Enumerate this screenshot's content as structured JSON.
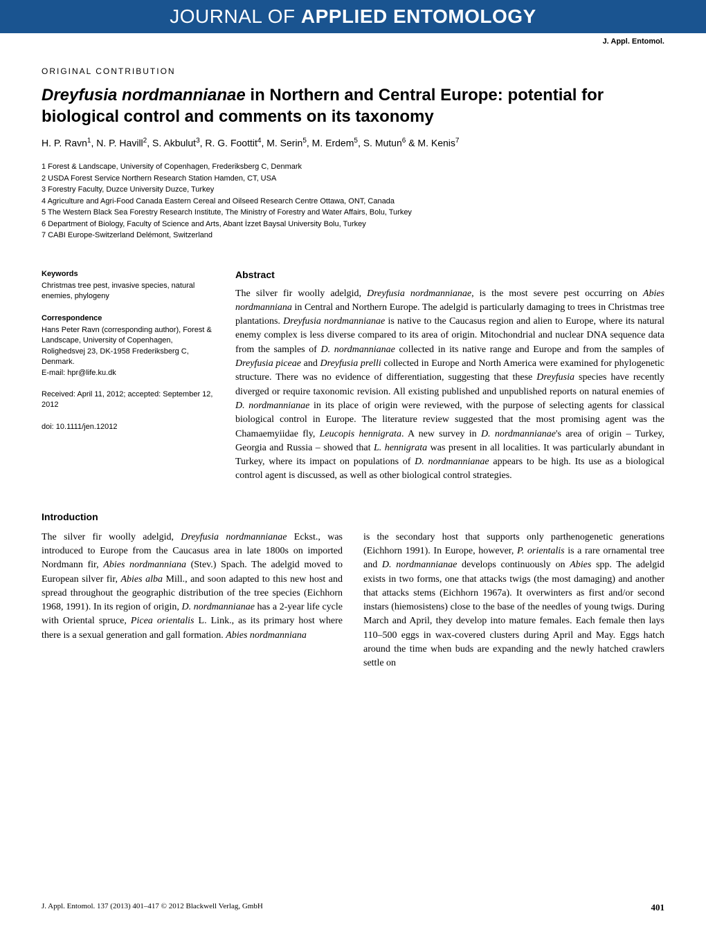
{
  "journal": {
    "banner_prefix": "JOURNAL OF ",
    "banner_bold": "APPLIED ENTOMOLOGY",
    "short_name": "J. Appl. Entomol."
  },
  "article": {
    "contribution_type": "ORIGINAL CONTRIBUTION",
    "title_italic": "Dreyfusia nordmannianae",
    "title_rest": " in Northern and Central Europe: potential for biological control and comments on its taxonomy",
    "authors_html": "H. P. Ravn<sup>1</sup>, N. P. Havill<sup>2</sup>, S. Akbulut<sup>3</sup>, R. G. Foottit<sup>4</sup>, M. Serin<sup>5</sup>, M. Erdem<sup>5</sup>, S. Mutun<sup>6</sup> & M. Kenis<sup>7</sup>",
    "affiliations": [
      "1 Forest & Landscape, University of Copenhagen, Frederiksberg C, Denmark",
      "2 USDA Forest Service Northern Research Station Hamden, CT, USA",
      "3 Forestry Faculty, Duzce University Duzce, Turkey",
      "4 Agriculture and Agri-Food Canada Eastern Cereal and Oilseed Research Centre Ottawa, ONT, Canada",
      "5 The Western Black Sea Forestry Research Institute, The Ministry of Forestry and Water Affairs, Bolu, Turkey",
      "6 Department of Biology, Faculty of Science and Arts, Abant İzzet Baysal University Bolu, Turkey",
      "7 CABI Europe-Switzerland Delémont, Switzerland"
    ]
  },
  "sidebar": {
    "keywords_heading": "Keywords",
    "keywords_text": "Christmas tree pest, invasive species, natural enemies, phylogeny",
    "correspondence_heading": "Correspondence",
    "correspondence_text": "Hans Peter Ravn (corresponding author), Forest & Landscape, University of Copenhagen, Rolighedsvej 23, DK-1958 Frederiksberg C, Denmark.",
    "email_label": "E-mail: hpr@life.ku.dk",
    "received_text": "Received: April 11, 2012; accepted: September 12, 2012",
    "doi_text": "doi: 10.1111/jen.12012"
  },
  "abstract": {
    "heading": "Abstract",
    "text_html": "The silver fir woolly adelgid, <span class=\"italic\">Dreyfusia nordmannianae</span>, is the most severe pest occurring on <span class=\"italic\">Abies nordmanniana</span> in Central and Northern Europe. The adelgid is particularly damaging to trees in Christmas tree plantations. <span class=\"italic\">Dreyfusia nordmannianae</span> is native to the Caucasus region and alien to Europe, where its natural enemy complex is less diverse compared to its area of origin. Mitochondrial and nuclear DNA sequence data from the samples of <span class=\"italic\">D. nordmannianae</span> collected in its native range and Europe and from the samples of <span class=\"italic\">Dreyfusia piceae</span> and <span class=\"italic\">Dreyfusia prelli</span> collected in Europe and North America were examined for phylogenetic structure. There was no evidence of differentiation, suggesting that these <span class=\"italic\">Dreyfusia</span> species have recently diverged or require taxonomic revision. All existing published and unpublished reports on natural enemies of <span class=\"italic\">D. nordmannianae</span> in its place of origin were reviewed, with the purpose of selecting agents for classical biological control in Europe. The literature review suggested that the most promising agent was the Chamaemyiidae fly, <span class=\"italic\">Leucopis hennigrata</span>. A new survey in <span class=\"italic\">D. nordmannianae</span>'s area of origin – Turkey, Georgia and Russia – showed that <span class=\"italic\">L. hennigrata</span> was present in all localities. It was particularly abundant in Turkey, where its impact on populations of <span class=\"italic\">D. nordmannianae</span> appears to be high. Its use as a biological control agent is discussed, as well as other biological control strategies."
  },
  "introduction": {
    "heading": "Introduction",
    "col1_html": "The silver fir woolly adelgid, <span class=\"italic\">Dreyfusia nordmannianae</span> Eckst., was introduced to Europe from the Caucasus area in late 1800s on imported Nordmann fir, <span class=\"italic\">Abies nordmanniana</span> (Stev.) Spach. The adelgid moved to European silver fir, <span class=\"italic\">Abies alba</span> Mill., and soon adapted to this new host and spread throughout the geographic distribution of the tree species (Eichhorn 1968, 1991). In its region of origin, <span class=\"italic\">D. nordmannianae</span> has a 2-year life cycle with Oriental spruce, <span class=\"italic\">Picea orientalis</span> L. Link., as its primary host where there is a sexual generation and gall formation. <span class=\"italic\">Abies nordmanniana</span>",
    "col2_html": "is the secondary host that supports only parthenogenetic generations (Eichhorn 1991). In Europe, however, <span class=\"italic\">P. orientalis</span> is a rare ornamental tree and <span class=\"italic\">D. nordmannianae</span> develops continuously on <span class=\"italic\">Abies</span> spp. The adelgid exists in two forms, one that attacks twigs (the most damaging) and another that attacks stems (Eichhorn 1967a). It overwinters as first and/or second instars (hiemosistens) close to the base of the needles of young twigs. During March and April, they develop into mature females. Each female then lays 110–500 eggs in wax-covered clusters during April and May. Eggs hatch around the time when buds are expanding and the newly hatched crawlers settle on"
  },
  "footer": {
    "left": "J. Appl. Entomol. 137 (2013) 401–417 © 2012 Blackwell Verlag, GmbH",
    "page": "401"
  },
  "colors": {
    "banner_bg": "#1a5490",
    "banner_text": "#ffffff",
    "body_text": "#000000",
    "background": "#ffffff"
  },
  "typography": {
    "banner_fontsize": 28,
    "title_fontsize": 24,
    "body_fontsize": 14,
    "sidebar_fontsize": 11,
    "footer_fontsize": 11
  }
}
